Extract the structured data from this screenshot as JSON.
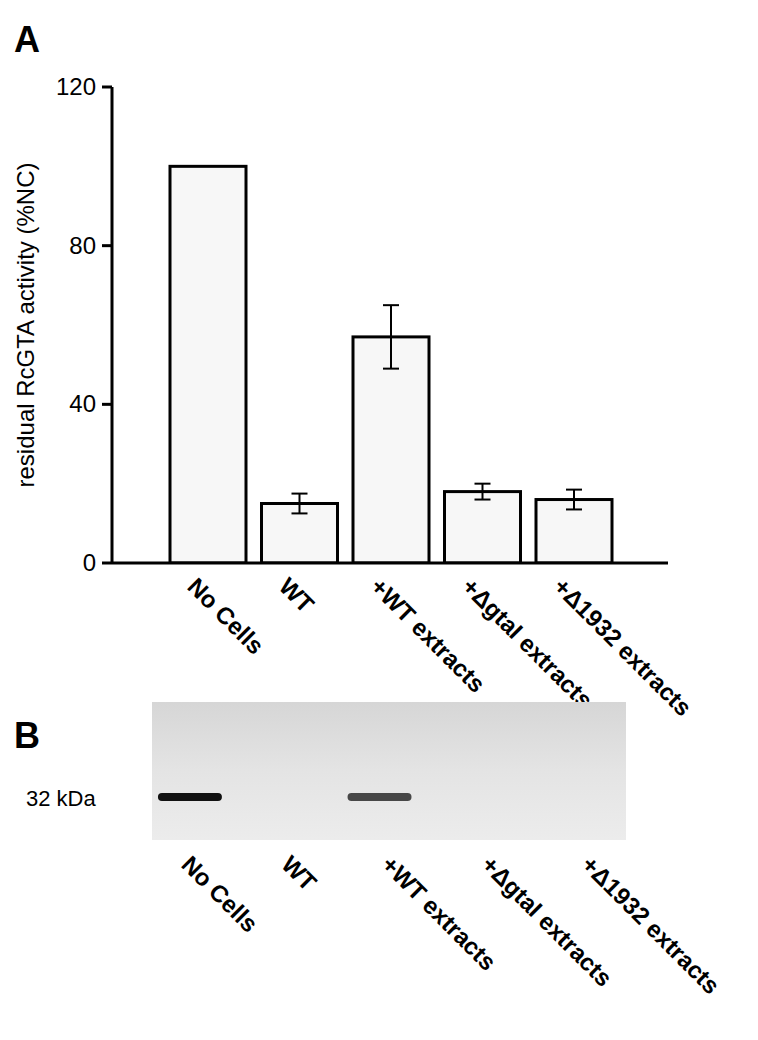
{
  "chart_data": [
    {
      "type": "bar",
      "title": "A",
      "ylabel": "residual RcGTA activity (%NC)",
      "categories": [
        "No Cells",
        "WT",
        "+WT extracts",
        "+ΔgtaI  extracts",
        "+Δ1932 extracts"
      ],
      "values": [
        100,
        15,
        57,
        18,
        16
      ],
      "errors": [
        0,
        2.5,
        8,
        2,
        2.5
      ],
      "color": "#f7f7f7",
      "ylim": [
        0,
        120
      ],
      "yticks": [
        0,
        40,
        80,
        120
      ],
      "grid": false
    },
    {
      "type": "blot",
      "title": "B",
      "annotations": [
        "32 kDa"
      ],
      "categories": [
        "No Cells",
        "WT",
        "+WT extracts",
        "+ΔgtaI  extracts",
        "+Δ1932 extracts"
      ],
      "values": [
        1,
        0,
        0.75,
        0,
        0
      ],
      "color": "#111111"
    }
  ]
}
